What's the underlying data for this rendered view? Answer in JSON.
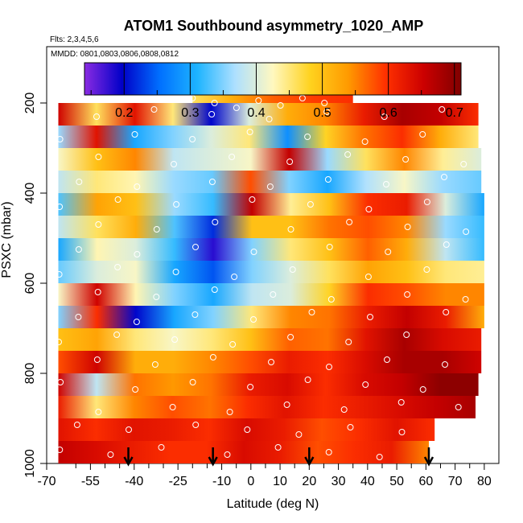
{
  "chart_data": {
    "type": "heatmap",
    "title": "ATOM1 Southbound asymmetry_1020_AMP",
    "flights_note": "Flts: 2,3,4,5,6",
    "dates_note": "MMDD: 0801,0803,0806,0808,0812",
    "xlabel": "Latitude (deg N)",
    "ylabel": "PSXC (mbar)",
    "xlim": [
      -70,
      85
    ],
    "ylim": [
      1000,
      75
    ],
    "x_tick_labels": [
      "-70",
      "-55",
      "-40",
      "-25",
      "-10",
      "0",
      "10",
      "20",
      "30",
      "40",
      "50",
      "60",
      "70",
      "80"
    ],
    "x_tick_values": [
      -70,
      -55,
      -40,
      -25,
      -10,
      0,
      10,
      20,
      30,
      40,
      50,
      60,
      70,
      80
    ],
    "y_tick_labels": [
      "200",
      "400",
      "600",
      "800",
      "1000"
    ],
    "y_tick_values": [
      200,
      400,
      600,
      800,
      1000
    ],
    "colorbar": {
      "range": [
        0.14,
        0.71
      ],
      "tick_labels": [
        "0.2",
        "0.3",
        "0.4",
        "0.5",
        "0.6",
        "0.7"
      ],
      "tick_values": [
        0.2,
        0.3,
        0.4,
        0.5,
        0.6,
        0.7
      ],
      "colors": [
        "#8a2be2",
        "#0000c8",
        "#0070ff",
        "#1eb4ff",
        "#aee0ff",
        "#fff8c0",
        "#ffd21e",
        "#ff9a00",
        "#ff3000",
        "#cc0000",
        "#800000"
      ]
    },
    "flight_arrows_lat": [
      -42,
      -13,
      20,
      61
    ],
    "layers": [
      {
        "p": 200,
        "lat": [
          -20,
          35
        ],
        "v": [
          0.46,
          0.52,
          0.57,
          0.59,
          0.6
        ]
      },
      {
        "p": 225,
        "lat": [
          -66,
          78
        ],
        "v": [
          0.65,
          0.46,
          0.63,
          0.45,
          0.2,
          0.4,
          0.52,
          0.55,
          0.62,
          0.68,
          0.66,
          0.6
        ]
      },
      {
        "p": 275,
        "lat": [
          -66,
          78
        ],
        "v": [
          0.36,
          0.63,
          0.3,
          0.35,
          0.4,
          0.45,
          0.28,
          0.48,
          0.56,
          0.6,
          0.52,
          0.45
        ]
      },
      {
        "p": 325,
        "lat": [
          -66,
          79
        ],
        "v": [
          0.42,
          0.5,
          0.55,
          0.38,
          0.4,
          0.42,
          0.66,
          0.36,
          0.46,
          0.55,
          0.44,
          0.4
        ]
      },
      {
        "p": 375,
        "lat": [
          -66,
          79
        ],
        "v": [
          0.38,
          0.45,
          0.43,
          0.36,
          0.34,
          0.58,
          0.35,
          0.3,
          0.37,
          0.42,
          0.36,
          0.34
        ]
      },
      {
        "p": 425,
        "lat": [
          -66,
          80
        ],
        "v": [
          0.33,
          0.53,
          0.5,
          0.36,
          0.32,
          0.66,
          0.44,
          0.5,
          0.6,
          0.62,
          0.4,
          0.3
        ]
      },
      {
        "p": 475,
        "lat": [
          -66,
          80
        ],
        "v": [
          0.38,
          0.46,
          0.52,
          0.33,
          0.22,
          0.5,
          0.5,
          0.56,
          0.58,
          0.55,
          0.36,
          0.32
        ]
      },
      {
        "p": 525,
        "lat": [
          -66,
          80
        ],
        "v": [
          0.3,
          0.43,
          0.4,
          0.32,
          0.18,
          0.35,
          0.45,
          0.5,
          0.57,
          0.52,
          0.38,
          0.32
        ]
      },
      {
        "p": 575,
        "lat": [
          -66,
          80
        ],
        "v": [
          0.34,
          0.4,
          0.42,
          0.3,
          0.24,
          0.35,
          0.4,
          0.46,
          0.53,
          0.5,
          0.45,
          0.44
        ]
      },
      {
        "p": 625,
        "lat": [
          -66,
          80
        ],
        "v": [
          0.42,
          0.65,
          0.43,
          0.35,
          0.3,
          0.38,
          0.4,
          0.48,
          0.6,
          0.58,
          0.55,
          0.55
        ]
      },
      {
        "p": 675,
        "lat": [
          -66,
          80
        ],
        "v": [
          0.35,
          0.6,
          0.2,
          0.3,
          0.35,
          0.45,
          0.55,
          0.56,
          0.62,
          0.66,
          0.62,
          0.52
        ]
      },
      {
        "p": 725,
        "lat": [
          -66,
          79
        ],
        "v": [
          0.5,
          0.53,
          0.45,
          0.42,
          0.45,
          0.5,
          0.57,
          0.56,
          0.63,
          0.68,
          0.64,
          0.62
        ]
      },
      {
        "p": 775,
        "lat": [
          -66,
          79
        ],
        "v": [
          0.58,
          0.65,
          0.52,
          0.52,
          0.55,
          0.58,
          0.62,
          0.6,
          0.64,
          0.68,
          0.68,
          0.65
        ]
      },
      {
        "p": 825,
        "lat": [
          -66,
          78
        ],
        "v": [
          0.65,
          0.38,
          0.56,
          0.54,
          0.56,
          0.62,
          0.64,
          0.6,
          0.64,
          0.66,
          0.7,
          0.7
        ]
      },
      {
        "p": 875,
        "lat": [
          -66,
          77
        ],
        "v": [
          0.62,
          0.45,
          0.55,
          0.58,
          0.56,
          0.6,
          0.63,
          0.6,
          0.62,
          0.64,
          0.66,
          0.68
        ]
      },
      {
        "p": 925,
        "lat": [
          -66,
          63
        ],
        "v": [
          0.63,
          0.6,
          0.63,
          0.62,
          0.6,
          0.64,
          0.62,
          0.58,
          0.6,
          0.63,
          0.6
        ]
      },
      {
        "p": 975,
        "lat": [
          -66,
          61
        ],
        "v": [
          0.66,
          0.64,
          0.62,
          0.6,
          0.6,
          0.64,
          0.62,
          0.58,
          0.6,
          0.62,
          0.55
        ]
      }
    ]
  }
}
